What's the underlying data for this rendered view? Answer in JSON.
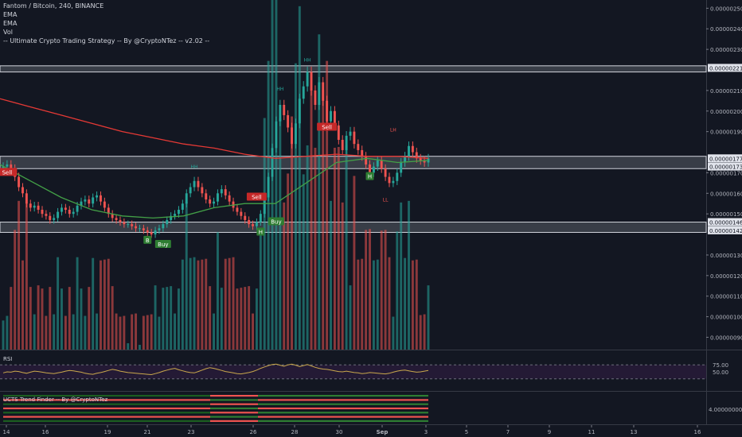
{
  "legend": {
    "symbol": "Fantom / Bitcoin, 240, BINANCE",
    "studies": [
      "EMA",
      "EMA",
      "Vol",
      "-- Ultimate Crypto Trading Strategy -- By @CryptoNTez -- v2.02 --"
    ]
  },
  "rsi_label": "RSI",
  "trend_label": "UCTS Trend Finder -- By @CryptoNTez",
  "colors": {
    "background": "#131722",
    "up": "#26a69a",
    "down": "#ef5350",
    "ema_slow": "#e53935",
    "ema_fast": "#43a047",
    "rsi_line": "#c9a84c",
    "rsi_bg": "#241a35",
    "zone": "#9aa0aa",
    "text": "#b2b5be"
  },
  "chart_data": {
    "type": "candlestick",
    "title": "Fantom / Bitcoin, 240, BINANCE",
    "x_ticks": [
      "14",
      "16",
      "19",
      "21",
      "23",
      "26",
      "28",
      "30",
      "Sep",
      "3",
      "5",
      "7",
      "9",
      "11",
      "13",
      "16"
    ],
    "price_axis": {
      "range": [
        8.4e-07,
        2.54e-06
      ],
      "ticks": [
        "0.00000250",
        "0.00000240",
        "0.00000230",
        "0.00000210",
        "0.00000200",
        "0.00000190",
        "0.00000170",
        "0.00000160",
        "0.00000150",
        "0.00000130",
        "0.00000120",
        "0.00000110",
        "0.00000100",
        "0.00000090"
      ],
      "price_labels": [
        "0.00000221",
        "0.00000177",
        "0.00000173",
        "0.00000146",
        "0.00000142"
      ]
    },
    "zones": [
      [
        2.19e-06,
        2.22e-06
      ],
      [
        1.72e-06,
        1.78e-06
      ],
      [
        1.41e-06,
        1.46e-06
      ]
    ],
    "close_series": [
      1.73e-06,
      1.74e-06,
      1.72e-06,
      1.68e-06,
      1.63e-06,
      1.6e-06,
      1.55e-06,
      1.53e-06,
      1.54e-06,
      1.52e-06,
      1.5e-06,
      1.49e-06,
      1.47e-06,
      1.48e-06,
      1.51e-06,
      1.53e-06,
      1.52e-06,
      1.5e-06,
      1.51e-06,
      1.54e-06,
      1.56e-06,
      1.57e-06,
      1.55e-06,
      1.58e-06,
      1.59e-06,
      1.56e-06,
      1.53e-06,
      1.5e-06,
      1.48e-06,
      1.47e-06,
      1.46e-06,
      1.45e-06,
      1.45e-06,
      1.44e-06,
      1.43e-06,
      1.43e-06,
      1.42e-06,
      1.41e-06,
      1.4e-06,
      1.42e-06,
      1.43e-06,
      1.45e-06,
      1.47e-06,
      1.49e-06,
      1.5e-06,
      1.52e-06,
      1.55e-06,
      1.6e-06,
      1.63e-06,
      1.66e-06,
      1.63e-06,
      1.6e-06,
      1.57e-06,
      1.55e-06,
      1.56e-06,
      1.6e-06,
      1.62e-06,
      1.59e-06,
      1.56e-06,
      1.53e-06,
      1.51e-06,
      1.49e-06,
      1.47e-06,
      1.45e-06,
      1.44e-06,
      1.46e-06,
      1.5e-06,
      1.58e-06,
      1.68e-06,
      1.82e-06,
      1.95e-06,
      2.03e-06,
      1.98e-06,
      1.92e-06,
      1.84e-06,
      1.94e-06,
      2.06e-06,
      2.12e-06,
      2.19e-06,
      2.1e-06,
      2.03e-06,
      2.14e-06,
      2.05e-06,
      1.95e-06,
      2e-06,
      1.93e-06,
      1.86e-06,
      1.81e-06,
      1.88e-06,
      1.9e-06,
      1.84e-06,
      1.81e-06,
      1.78e-06,
      1.74e-06,
      1.7e-06,
      1.73e-06,
      1.76e-06,
      1.72e-06,
      1.68e-06,
      1.65e-06,
      1.66e-06,
      1.7e-06,
      1.75e-06,
      1.78e-06,
      1.83e-06,
      1.8e-06,
      1.77e-06,
      1.76e-06,
      1.75e-06,
      1.77e-06
    ],
    "ema_slow": [
      2.06e-06,
      2.02e-06,
      1.98e-06,
      1.94e-06,
      1.9e-06,
      1.87e-06,
      1.84e-06,
      1.82e-06,
      1.79e-06,
      1.77e-06,
      1.78e-06,
      1.79e-06,
      1.78e-06,
      1.78e-06,
      1.77e-06
    ],
    "ema_fast": [
      1.74e-06,
      1.66e-06,
      1.58e-06,
      1.52e-06,
      1.49e-06,
      1.48e-06,
      1.49e-06,
      1.53e-06,
      1.55e-06,
      1.55e-06,
      1.65e-06,
      1.75e-06,
      1.77e-06,
      1.75e-06,
      1.76e-06
    ],
    "signal_labels": [
      "Sell",
      "Sell",
      "Sell",
      "Buy",
      "Buy",
      "B",
      "H",
      "H"
    ],
    "swing_labels": [
      "HH",
      "HH",
      "HH",
      "LH",
      "LL"
    ],
    "rsi": {
      "label": "RSI",
      "ticks": [
        "75.00",
        "50.00"
      ],
      "bands": [
        70,
        30
      ],
      "values": [
        47,
        50,
        49,
        52,
        51,
        48,
        46,
        49,
        52,
        51,
        49,
        47,
        46,
        45,
        47,
        49,
        52,
        54,
        53,
        51,
        49,
        46,
        44,
        43,
        46,
        48,
        51,
        54,
        57,
        55,
        52,
        50,
        48,
        47,
        46,
        45,
        44,
        43,
        42,
        45,
        48,
        52,
        55,
        58,
        60,
        56,
        53,
        50,
        48,
        47,
        51,
        55,
        59,
        62,
        60,
        57,
        54,
        51,
        49,
        47,
        45,
        44,
        46,
        48,
        51,
        55,
        60,
        64,
        68,
        71,
        72,
        69,
        66,
        70,
        72,
        69,
        65,
        68,
        71,
        67,
        63,
        60,
        58,
        57,
        55,
        53,
        51,
        50,
        52,
        50,
        48,
        47,
        45,
        46,
        48,
        47,
        46,
        45,
        44,
        46,
        49,
        52,
        54,
        55,
        53,
        51,
        49,
        50,
        52,
        54
      ]
    },
    "trend_finder": {
      "label": "UCTS Trend Finder -- By @CryptoNTez",
      "tick": "4.00000000"
    }
  }
}
